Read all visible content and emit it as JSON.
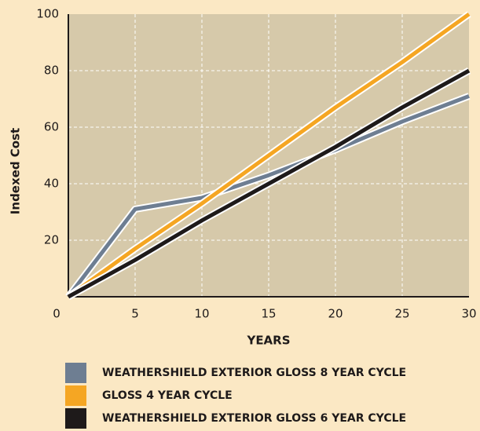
{
  "chart_data": {
    "type": "line",
    "x_label": "YEARS",
    "y_label": "Indexed Cost",
    "x": [
      0,
      5,
      10,
      15,
      20,
      25,
      30
    ],
    "series": [
      {
        "name": "WEATHERSHIELD EXTERIOR GLOSS 8 YEAR CYCLE",
        "color": "#6e7e92",
        "values": [
          0,
          31,
          35,
          43,
          52,
          62,
          71
        ]
      },
      {
        "name": "GLOSS 4 YEAR CYCLE",
        "color": "#f5a623",
        "values": [
          0,
          17,
          33,
          50,
          67,
          83,
          100
        ]
      },
      {
        "name": "WEATHERSHIELD EXTERIOR GLOSS 6 YEAR CYCLE",
        "color": "#1e1a1a",
        "values": [
          0,
          13,
          27,
          40,
          53,
          67,
          80
        ]
      }
    ],
    "xlim": [
      0,
      30
    ],
    "xticks": [
      0,
      5,
      10,
      15,
      20,
      25,
      30
    ],
    "ylim": [
      0,
      100
    ],
    "yticks": [
      20,
      40,
      60,
      80,
      100
    ],
    "grid": true,
    "legend": "bottom"
  }
}
